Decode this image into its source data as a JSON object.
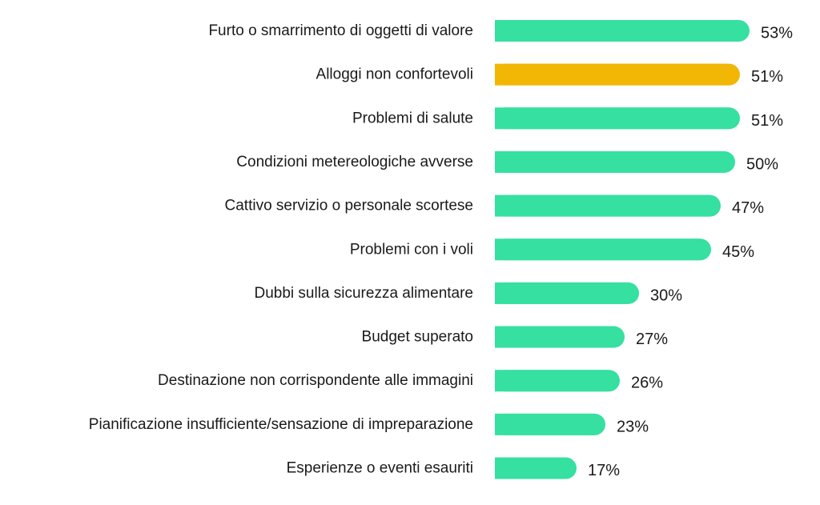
{
  "chart_data": {
    "type": "bar",
    "orientation": "horizontal",
    "categories": [
      "Furto o smarrimento di oggetti di valore",
      "Alloggi non confortevoli",
      "Problemi di salute",
      "Condizioni metereologiche avverse",
      "Cattivo servizio o personale scortese",
      "Problemi con i voli",
      "Dubbi sulla sicurezza alimentare",
      "Budget superato",
      "Destinazione non corrispondente alle immagini",
      "Pianificazione insufficiente/sensazione di impreparazione",
      "Esperienze o eventi esauriti"
    ],
    "values": [
      53,
      51,
      51,
      50,
      47,
      45,
      30,
      27,
      26,
      23,
      17
    ],
    "value_labels": [
      "53%",
      "51%",
      "51%",
      "50%",
      "47%",
      "45%",
      "30%",
      "27%",
      "26%",
      "23%",
      "17%"
    ],
    "highlight_index": 1,
    "colors": {
      "default": "#35e0a1",
      "highlight": "#f2b705"
    },
    "xlim": [
      0,
      53
    ],
    "grid": false,
    "legend": "none"
  }
}
